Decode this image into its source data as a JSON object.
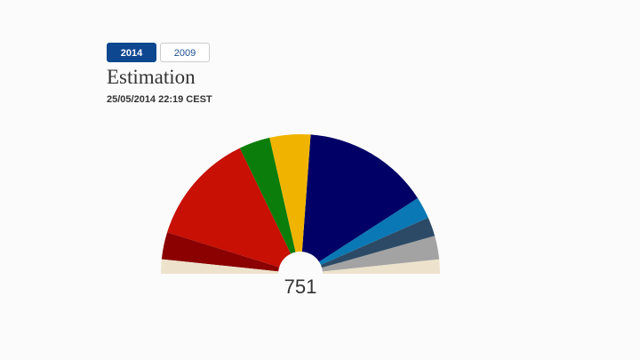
{
  "tabs": [
    "2014",
    "2009"
  ],
  "chart_data": {
    "type": "parliament",
    "title": "Estimation",
    "subtitle": "25/05/2014 22:19 CEST",
    "total": 751,
    "values": [
      25,
      47,
      196,
      54,
      71,
      221,
      38,
      33,
      41,
      25
    ],
    "colors": [
      "#ede3cc",
      "#8b0000",
      "#c81005",
      "#0b7d0b",
      "#f0b400",
      "#000066",
      "#0a78b4",
      "#2c4a66",
      "#a3a3a3",
      "#ede3cc"
    ]
  }
}
